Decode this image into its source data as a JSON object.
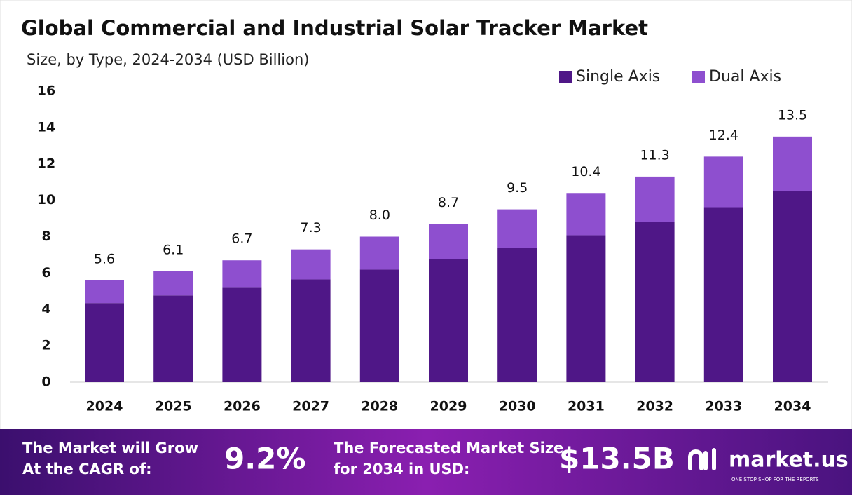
{
  "chart_data": {
    "type": "stacked-bar",
    "title": "Global Commercial and Industrial Solar Tracker Market",
    "subtitle": "Size, by Type, 2024-2034 (USD Billion)",
    "categories": [
      "2024",
      "2025",
      "2026",
      "2027",
      "2028",
      "2029",
      "2030",
      "2031",
      "2032",
      "2033",
      "2034"
    ],
    "series": [
      {
        "name": "Single Axis",
        "color": "#4f1787",
        "values": [
          4.35,
          4.77,
          5.19,
          5.65,
          6.19,
          6.77,
          7.38,
          8.08,
          8.81,
          9.62,
          10.5
        ]
      },
      {
        "name": "Dual Axis",
        "color": "#8e4fcf",
        "values": [
          1.25,
          1.33,
          1.51,
          1.65,
          1.81,
          1.93,
          2.12,
          2.32,
          2.49,
          2.78,
          3.0
        ]
      }
    ],
    "totals": [
      5.6,
      6.1,
      6.7,
      7.3,
      {
        "value": 8.0,
        "label": "8.0"
      },
      8.7,
      9.5,
      10.4,
      11.3,
      12.4,
      13.5
    ],
    "ylim": [
      0,
      16
    ],
    "yticks": [
      0,
      2,
      4,
      6,
      8,
      10,
      12,
      14,
      16
    ],
    "grid": false,
    "legend": "top-right"
  },
  "footer": {
    "cagr_text": "The Market will Grow At the CAGR of:",
    "cagr_value": "9.2%",
    "forecast_text": "The Forecasted Market Size for 2034 in USD:",
    "forecast_value": "$13.5B",
    "logo": "market.us",
    "tagline": "ONE STOP SHOP FOR THE REPORTS"
  }
}
